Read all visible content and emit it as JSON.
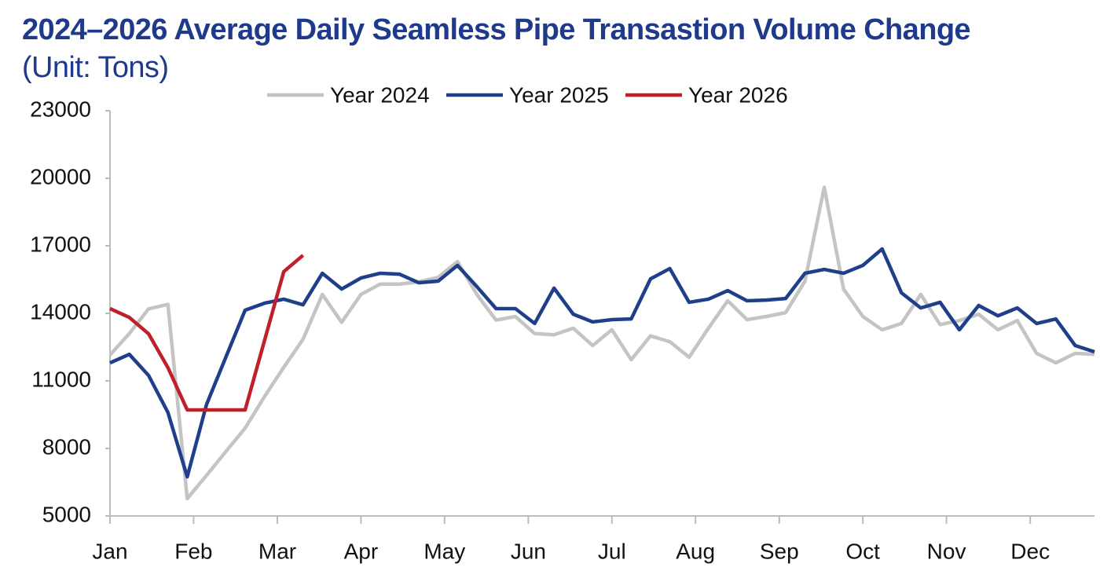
{
  "chart_data": {
    "type": "line",
    "title": "2024–2026 Average Daily Seamless Pipe Transastion Volume Change",
    "unit": "(Unit: Tons)",
    "x": [
      0,
      1,
      2,
      3,
      4,
      5,
      6,
      7,
      8,
      9,
      10,
      11,
      12,
      13,
      14,
      15,
      16,
      17,
      18,
      19,
      20,
      21,
      22,
      23,
      24,
      25,
      26,
      27,
      28,
      29,
      30,
      31,
      32,
      33,
      34,
      35,
      36,
      37,
      38,
      39,
      40,
      41,
      42,
      43,
      44,
      45,
      46,
      47,
      48,
      49,
      50,
      51
    ],
    "xlim": [
      0,
      51
    ],
    "xticks": [
      {
        "value": 0,
        "label": "Jan"
      },
      {
        "value": 4.33,
        "label": "Feb"
      },
      {
        "value": 8.67,
        "label": "Mar"
      },
      {
        "value": 13,
        "label": "Apr"
      },
      {
        "value": 17.33,
        "label": "May"
      },
      {
        "value": 21.67,
        "label": "Jun"
      },
      {
        "value": 26,
        "label": "Jul"
      },
      {
        "value": 30.33,
        "label": "Aug"
      },
      {
        "value": 34.67,
        "label": "Sep"
      },
      {
        "value": 39,
        "label": "Oct"
      },
      {
        "value": 43.33,
        "label": "Nov"
      },
      {
        "value": 47.67,
        "label": "Dec"
      }
    ],
    "ylim": [
      5000,
      23000
    ],
    "yticks": [
      5000,
      8000,
      11000,
      14000,
      17000,
      20000,
      23000
    ],
    "grid": false,
    "legend": "top",
    "series": [
      {
        "name": "Year 2024",
        "color": "#c4c4c4",
        "values": [
          12150,
          13100,
          14200,
          14400,
          5770,
          6800,
          7860,
          8900,
          10300,
          11600,
          12850,
          14840,
          13600,
          14840,
          15300,
          15300,
          15400,
          15600,
          16300,
          14840,
          13700,
          13860,
          13100,
          13050,
          13340,
          12570,
          13270,
          11940,
          13000,
          12740,
          12050,
          13340,
          14560,
          13720,
          13860,
          14030,
          15430,
          19600,
          15080,
          13860,
          13270,
          13550,
          14840,
          13500,
          13680,
          13960,
          13270,
          13680,
          12220,
          11800,
          12220,
          12180
        ]
      },
      {
        "name": "Year 2025",
        "color": "#1f3f8a",
        "values": [
          11800,
          12180,
          11240,
          9600,
          6740,
          9950,
          12050,
          14140,
          14450,
          14630,
          14380,
          15780,
          15080,
          15570,
          15780,
          15740,
          15360,
          15430,
          16130,
          15190,
          14210,
          14210,
          13550,
          15120,
          13960,
          13620,
          13720,
          13750,
          15530,
          15990,
          14490,
          14630,
          15010,
          14560,
          14590,
          14660,
          15780,
          15950,
          15780,
          16130,
          16860,
          14910,
          14240,
          14490,
          13270,
          14350,
          13890,
          14240,
          13550,
          13750,
          12570,
          12290
        ]
      },
      {
        "name": "Year 2026",
        "color": "#c0202a",
        "values": [
          14210,
          13820,
          13090,
          11590,
          9710,
          9710,
          9710,
          9710,
          12780,
          15850,
          16580,
          null,
          null,
          null,
          null,
          null,
          null,
          null,
          null,
          null,
          null,
          null,
          null,
          null,
          null,
          null,
          null,
          null,
          null,
          null,
          null,
          null,
          null,
          null,
          null,
          null,
          null,
          null,
          null,
          null,
          null,
          null,
          null,
          null,
          null,
          null,
          null,
          null,
          null,
          null,
          null,
          null
        ]
      }
    ]
  }
}
